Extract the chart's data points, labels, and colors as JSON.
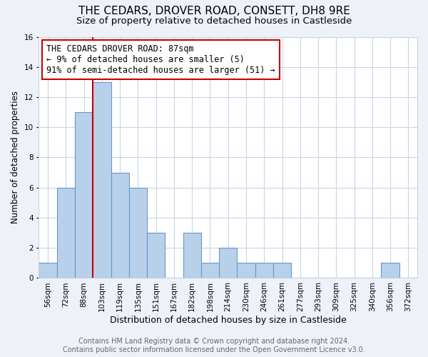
{
  "title": "THE CEDARS, DROVER ROAD, CONSETT, DH8 9RE",
  "subtitle": "Size of property relative to detached houses in Castleside",
  "xlabel": "Distribution of detached houses by size in Castleside",
  "ylabel": "Number of detached properties",
  "footer_line1": "Contains HM Land Registry data © Crown copyright and database right 2024.",
  "footer_line2": "Contains public sector information licensed under the Open Government Licence v3.0.",
  "bin_labels": [
    "56sqm",
    "72sqm",
    "88sqm",
    "103sqm",
    "119sqm",
    "135sqm",
    "151sqm",
    "167sqm",
    "182sqm",
    "198sqm",
    "214sqm",
    "230sqm",
    "246sqm",
    "261sqm",
    "277sqm",
    "293sqm",
    "309sqm",
    "325sqm",
    "340sqm",
    "356sqm",
    "372sqm"
  ],
  "bar_heights": [
    1,
    6,
    11,
    13,
    7,
    6,
    3,
    0,
    3,
    1,
    2,
    1,
    1,
    1,
    0,
    0,
    0,
    0,
    0,
    1,
    0
  ],
  "bar_color": "#b8d0ea",
  "bar_edge_color": "#6699cc",
  "reference_line_x": 2.5,
  "reference_line_color": "#cc0000",
  "annotation_line1": "THE CEDARS DROVER ROAD: 87sqm",
  "annotation_line2": "← 9% of detached houses are smaller (5)",
  "annotation_line3": "91% of semi-detached houses are larger (51) →",
  "annotation_box_edge_color": "#cc0000",
  "ylim": [
    0,
    16
  ],
  "yticks": [
    0,
    2,
    4,
    6,
    8,
    10,
    12,
    14,
    16
  ],
  "background_color": "#eef2f8",
  "plot_background_color": "#ffffff",
  "grid_color": "#c8d4e8",
  "title_fontsize": 11,
  "subtitle_fontsize": 9.5,
  "xlabel_fontsize": 9,
  "ylabel_fontsize": 8.5,
  "tick_fontsize": 7.5,
  "annotation_fontsize": 8.5,
  "footer_fontsize": 7
}
